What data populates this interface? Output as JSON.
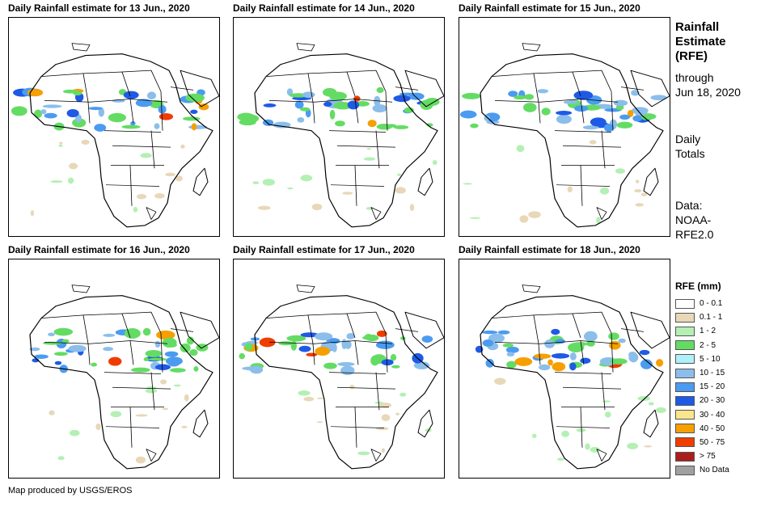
{
  "panels": [
    {
      "title": "Daily Rainfall estimate for 13 Jun., 2020"
    },
    {
      "title": "Daily Rainfall estimate for 14 Jun., 2020"
    },
    {
      "title": "Daily Rainfall estimate for 15 Jun., 2020"
    },
    {
      "title": "Daily Rainfall estimate for 16 Jun., 2020"
    },
    {
      "title": "Daily Rainfall estimate for 17 Jun., 2020"
    },
    {
      "title": "Daily Rainfall estimate for 18 Jun., 2020"
    }
  ],
  "sidebar": {
    "title_lines": [
      "Rainfall",
      "Estimate",
      "(RFE)"
    ],
    "through_lines": [
      "through",
      "Jun 18, 2020"
    ],
    "daily_lines": [
      "Daily",
      "Totals"
    ],
    "data_lines": [
      "Data:",
      "NOAA-",
      "RFE2.0"
    ]
  },
  "legend": {
    "title": "RFE (mm)",
    "items": [
      {
        "label": "0 - 0.1",
        "color": "#ffffff"
      },
      {
        "label": "0.1 - 1",
        "color": "#e8d8b8"
      },
      {
        "label": "1 - 2",
        "color": "#b4f0b4"
      },
      {
        "label": "2 - 5",
        "color": "#64dc64"
      },
      {
        "label": "5 - 10",
        "color": "#b0f0fa"
      },
      {
        "label": "10 - 15",
        "color": "#8cbeeb"
      },
      {
        "label": "15 - 20",
        "color": "#4b9bf0"
      },
      {
        "label": "20 - 30",
        "color": "#1e5ae6"
      },
      {
        "label": "30 - 40",
        "color": "#fae68c"
      },
      {
        "label": "40 - 50",
        "color": "#f5a000"
      },
      {
        "label": "50 - 75",
        "color": "#f03c00"
      },
      {
        "label": "> 75",
        "color": "#aa1e1e"
      },
      {
        "label": "No Data",
        "color": "#a0a0a0"
      }
    ]
  },
  "credit": "Map produced by USGS/EROS"
}
